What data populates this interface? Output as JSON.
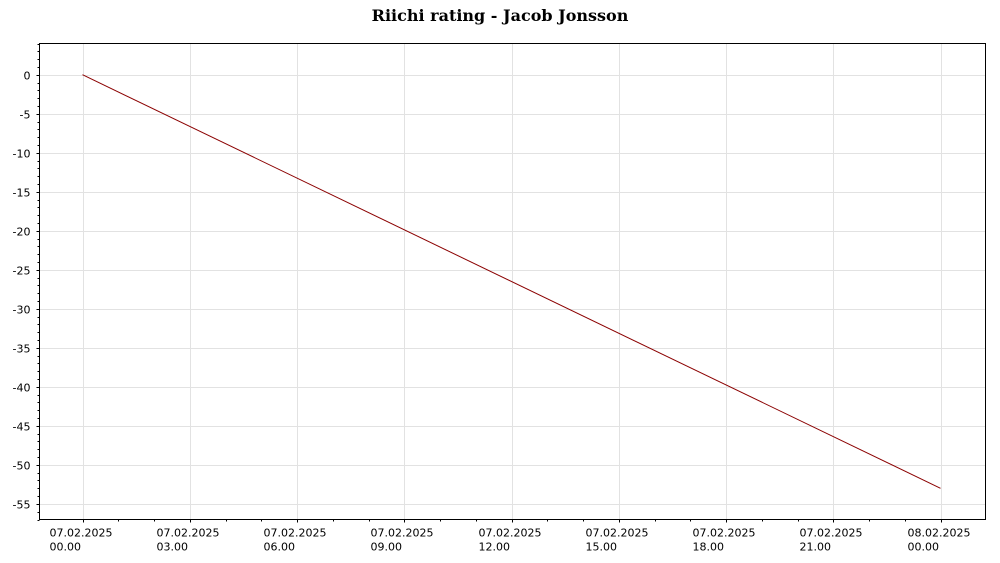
{
  "chart_data": {
    "type": "line",
    "title": "Riichi rating - Jacob Jonsson",
    "xlabel": "",
    "ylabel": "",
    "x_ticks": [
      {
        "date": "07.02.2025",
        "time": "00.00"
      },
      {
        "date": "07.02.2025",
        "time": "03.00"
      },
      {
        "date": "07.02.2025",
        "time": "06.00"
      },
      {
        "date": "07.02.2025",
        "time": "09.00"
      },
      {
        "date": "07.02.2025",
        "time": "12.00"
      },
      {
        "date": "07.02.2025",
        "time": "15.00"
      },
      {
        "date": "07.02.2025",
        "time": "18.00"
      },
      {
        "date": "07.02.2025",
        "time": "21.00"
      },
      {
        "date": "08.02.2025",
        "time": "00.00"
      }
    ],
    "xlim": [
      "07.02.2025 00.00",
      "08.02.2025 00.00"
    ],
    "ylim": [
      -57,
      4
    ],
    "y_ticks": [
      0,
      -5,
      -10,
      -15,
      -20,
      -25,
      -30,
      -35,
      -40,
      -45,
      -50,
      -55
    ],
    "grid": true,
    "series": [
      {
        "color": "#8b0000",
        "points": [
          {
            "x": "07.02.2025 00.00",
            "y": 0
          },
          {
            "x": "08.02.2025 00.00",
            "y": -53
          }
        ]
      }
    ]
  }
}
